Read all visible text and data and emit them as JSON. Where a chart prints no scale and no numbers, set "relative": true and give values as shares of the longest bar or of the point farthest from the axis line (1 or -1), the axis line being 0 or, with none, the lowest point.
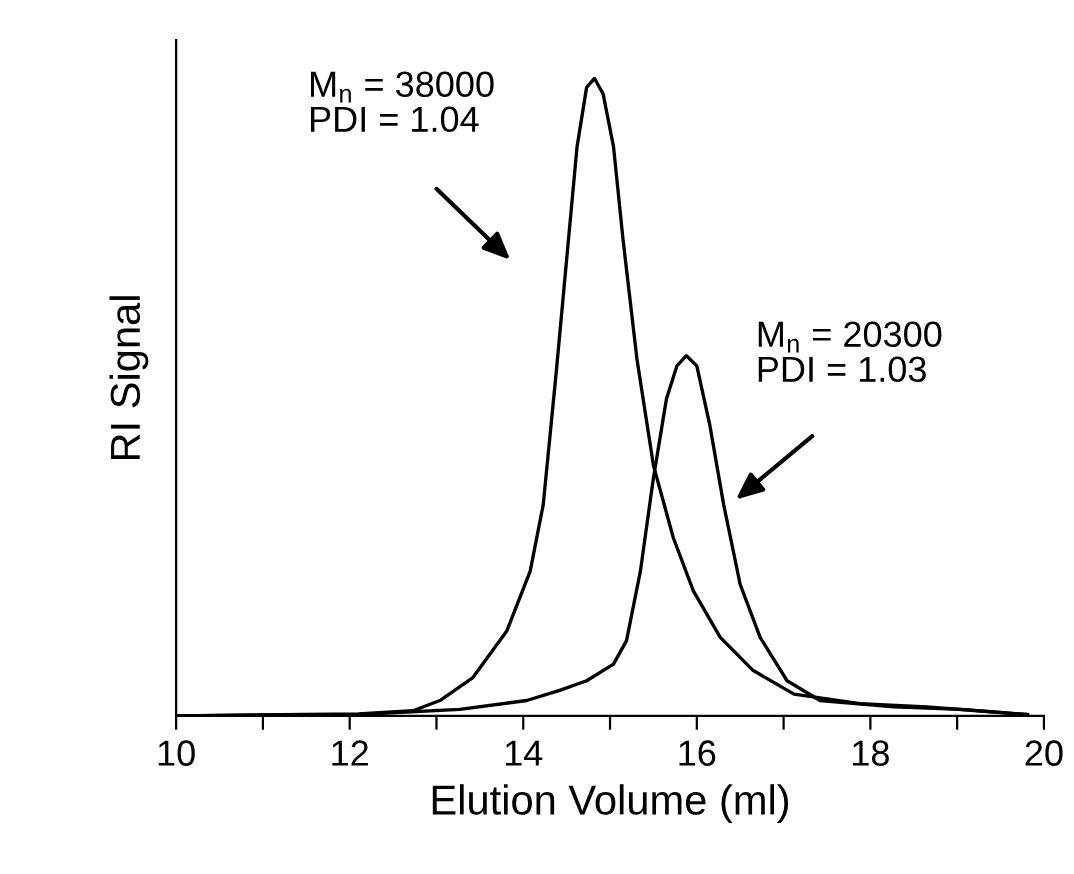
{
  "chart_data": {
    "type": "line",
    "relative": true,
    "xlabel": "Elution Volume (ml)",
    "ylabel": "RI Signal",
    "xlim": [
      10,
      20
    ],
    "xticks": [
      10,
      {
        "value": 11,
        "label": null
      },
      12,
      {
        "value": 13,
        "label": null
      },
      14,
      {
        "value": 15,
        "label": null
      },
      16,
      {
        "value": 17,
        "label": null
      },
      18,
      {
        "value": 19,
        "label": null
      },
      20
    ],
    "grid": false,
    "legend": false,
    "marker": "none",
    "line_style": "solid",
    "annotations": [
      "M$_{n}$ = 38000\nPDI = 1.04",
      "M$_{n}$ = 20300\nPDI = 1.03"
    ],
    "series": [
      {
        "color": "#000000",
        "x": [
          10,
          12.1,
          12.73,
          13.04,
          13.42,
          13.81,
          14.08,
          14.23,
          14.38,
          14.5,
          14.62,
          14.73,
          14.82,
          14.92,
          15.04,
          15.15,
          15.31,
          15.5,
          15.73,
          15.96,
          16.27,
          16.65,
          17.12,
          17.88,
          18.65,
          19.42,
          19.81
        ],
        "values": [
          0,
          0.003,
          0.008,
          0.024,
          0.06,
          0.133,
          0.227,
          0.331,
          0.539,
          0.716,
          0.893,
          0.986,
          1.0,
          0.976,
          0.893,
          0.747,
          0.56,
          0.393,
          0.279,
          0.196,
          0.123,
          0.071,
          0.034,
          0.019,
          0.014,
          0.006,
          0.002
        ]
      },
      {
        "color": "#000000",
        "x": [
          10,
          12.1,
          13.27,
          14.04,
          14.42,
          14.73,
          15.04,
          15.19,
          15.35,
          15.5,
          15.65,
          15.77,
          15.88,
          16.0,
          16.15,
          16.31,
          16.5,
          16.73,
          17.04,
          17.42,
          18.27,
          19.04,
          19.81
        ],
        "values": [
          0,
          0.002,
          0.01,
          0.024,
          0.04,
          0.055,
          0.081,
          0.118,
          0.227,
          0.373,
          0.497,
          0.549,
          0.565,
          0.549,
          0.456,
          0.331,
          0.206,
          0.123,
          0.055,
          0.024,
          0.014,
          0.01,
          0.002
        ]
      }
    ]
  }
}
